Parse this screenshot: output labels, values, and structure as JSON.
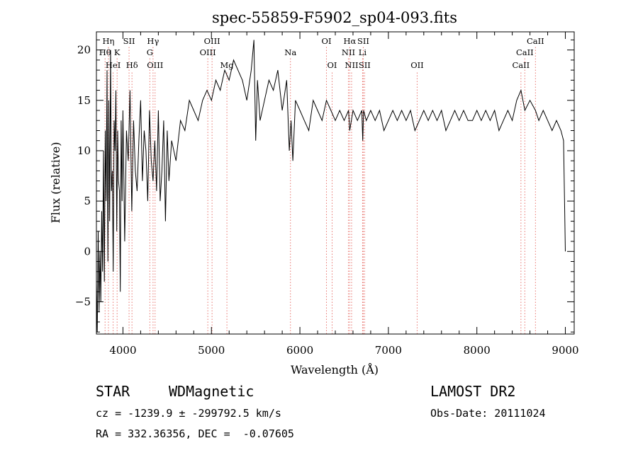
{
  "chart_data": {
    "type": "line",
    "title": "spec-55859-F5902_sp04-093.fits",
    "xlabel": "Wavelength (Å)",
    "ylabel": "Flux (relative)",
    "xlim": [
      3700,
      9100
    ],
    "ylim": [
      -8.2,
      21.8
    ],
    "xticks": [
      4000,
      5000,
      6000,
      7000,
      8000,
      9000
    ],
    "yticks": [
      -5,
      0,
      5,
      10,
      15,
      20
    ],
    "grid": false,
    "series": [
      {
        "values_x": [
          3700,
          3710,
          3720,
          3730,
          3740,
          3750,
          3760,
          3770,
          3780,
          3790,
          3800,
          3810,
          3820,
          3830,
          3840,
          3850,
          3860,
          3870,
          3880,
          3890,
          3900,
          3910,
          3920,
          3930,
          3940,
          3950,
          3960,
          3970,
          3980,
          3990,
          4000,
          4020,
          4040,
          4060,
          4080,
          4100,
          4120,
          4140,
          4160,
          4180,
          4200,
          4220,
          4240,
          4260,
          4280,
          4300,
          4320,
          4340,
          4360,
          4380,
          4400,
          4420,
          4440,
          4460,
          4480,
          4500,
          4520,
          4550,
          4600,
          4650,
          4700,
          4750,
          4800,
          4850,
          4900,
          4950,
          5000,
          5050,
          5100,
          5150,
          5200,
          5250,
          5300,
          5350,
          5400,
          5450,
          5480,
          5500,
          5520,
          5550,
          5600,
          5650,
          5700,
          5750,
          5800,
          5850,
          5880,
          5900,
          5920,
          5950,
          6000,
          6050,
          6100,
          6150,
          6200,
          6250,
          6300,
          6350,
          6400,
          6450,
          6500,
          6550,
          6563,
          6600,
          6650,
          6700,
          6710,
          6720,
          6750,
          6800,
          6850,
          6900,
          6950,
          7000,
          7050,
          7100,
          7150,
          7200,
          7250,
          7300,
          7350,
          7400,
          7450,
          7500,
          7550,
          7600,
          7650,
          7700,
          7750,
          7800,
          7850,
          7900,
          7950,
          8000,
          8050,
          8100,
          8150,
          8200,
          8250,
          8300,
          8350,
          8400,
          8450,
          8498,
          8542,
          8600,
          8662,
          8700,
          8750,
          8800,
          8850,
          8900,
          8950,
          8980,
          9000
        ],
        "values_y": [
          -3,
          -8,
          2,
          -6,
          0,
          -5,
          4,
          -2,
          10,
          -3,
          12,
          5,
          18,
          -1,
          15,
          3,
          20,
          6,
          8,
          -2,
          13,
          10,
          16,
          2,
          12,
          7,
          6,
          -4,
          13,
          5,
          14,
          1,
          12,
          9,
          16,
          4,
          13,
          8,
          6,
          11,
          15,
          7,
          12,
          10,
          5,
          14,
          9,
          7,
          11,
          6,
          14,
          5,
          8,
          13,
          3,
          12,
          7,
          11,
          9,
          13,
          12,
          15,
          14,
          13,
          15,
          16,
          15,
          17,
          16,
          18,
          17,
          19,
          18,
          17,
          15,
          18,
          21,
          11,
          17,
          13,
          15,
          17,
          16,
          18,
          14,
          17,
          10,
          13,
          9,
          15,
          14,
          13,
          12,
          15,
          14,
          13,
          15,
          14,
          13,
          14,
          13,
          14,
          12,
          14,
          13,
          14,
          11,
          14,
          13,
          14,
          13,
          14,
          12,
          13,
          14,
          13,
          14,
          13,
          14,
          12,
          13,
          14,
          13,
          14,
          13,
          14,
          12,
          13,
          14,
          13,
          14,
          13,
          13,
          14,
          13,
          14,
          13,
          14,
          12,
          13,
          14,
          13,
          15,
          16,
          14,
          15,
          14,
          13,
          14,
          13,
          12,
          13,
          12,
          11,
          0
        ]
      }
    ],
    "lines": [
      {
        "name": "Hη",
        "x": 3836,
        "row": 1
      },
      {
        "name": "Hθ",
        "x": 3798,
        "row": 2
      },
      {
        "name": "K",
        "x": 3934,
        "row": 2
      },
      {
        "name": "HeI",
        "x": 3889,
        "row": 3
      },
      {
        "name": "SII",
        "x": 4069,
        "row": 1
      },
      {
        "name": "Hδ",
        "x": 4102,
        "row": 3
      },
      {
        "name": "Hγ",
        "x": 4340,
        "row": 1
      },
      {
        "name": "G",
        "x": 4304,
        "row": 2
      },
      {
        "name": "OIII",
        "x": 4363,
        "row": 3
      },
      {
        "name": "OIII",
        "x": 5007,
        "row": 1
      },
      {
        "name": "OIII",
        "x": 4959,
        "row": 2
      },
      {
        "name": "Mg",
        "x": 5175,
        "row": 3
      },
      {
        "name": "Na",
        "x": 5893,
        "row": 2
      },
      {
        "name": "OI",
        "x": 6300,
        "row": 1
      },
      {
        "name": "OI",
        "x": 6364,
        "row": 3
      },
      {
        "name": "Hα",
        "x": 6563,
        "row": 1
      },
      {
        "name": "SII",
        "x": 6716,
        "row": 1
      },
      {
        "name": "NII",
        "x": 6548,
        "row": 2
      },
      {
        "name": "Li",
        "x": 6708,
        "row": 2
      },
      {
        "name": "NII",
        "x": 6584,
        "row": 3
      },
      {
        "name": "SII",
        "x": 6731,
        "row": 3
      },
      {
        "name": "OII",
        "x": 7325,
        "row": 3
      },
      {
        "name": "CaII",
        "x": 8662,
        "row": 1
      },
      {
        "name": "CaII",
        "x": 8542,
        "row": 2
      },
      {
        "name": "CaII",
        "x": 8498,
        "row": 3
      }
    ],
    "line_color": "#e8756f"
  },
  "info": {
    "class": "STAR",
    "subclass": "WDMagnetic",
    "survey": "LAMOST DR2",
    "cz": "cz = -1239.9 ± -299792.5 km/s",
    "obs_date": "Obs-Date: 20111024",
    "coords": "RA = 332.36356, DEC =  -0.07605"
  }
}
